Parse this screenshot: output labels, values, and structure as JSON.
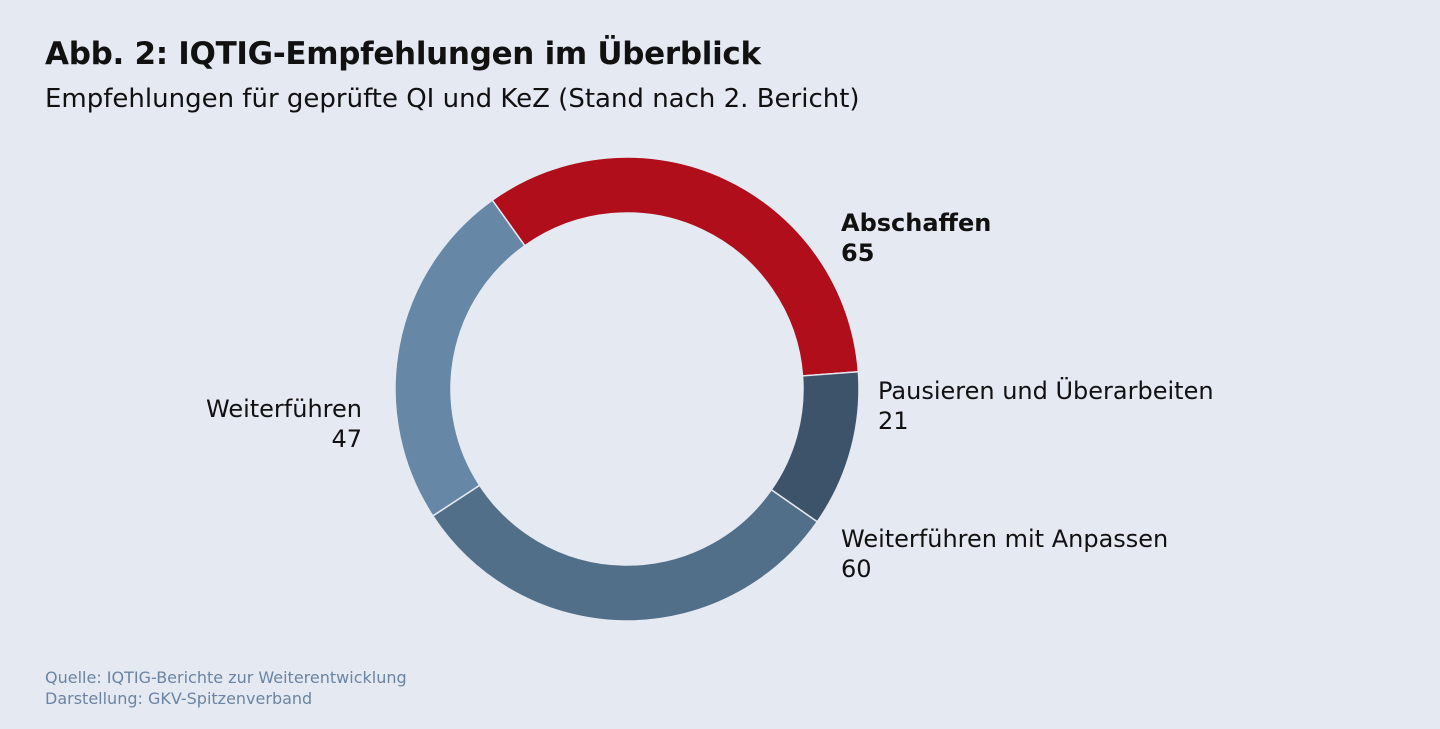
{
  "chart_data": {
    "type": "pie",
    "title": "Abb. 2: IQTIG-Empfehlungen im Überblick",
    "subtitle": "Empfehlungen für geprüfte QI und KeZ (Stand nach 2. Bericht)",
    "donut": true,
    "slices": [
      {
        "label": "Abschaffen",
        "value": 65,
        "value_label": "65",
        "color": "#b00e1a",
        "emphasis": true
      },
      {
        "label": "Pausieren und Überarbeiten",
        "value": 21,
        "value_label": "21",
        "color": "#3d5369",
        "emphasis": false
      },
      {
        "label": "Weiterführen mit Anpassen",
        "value": 60,
        "value_label": "60",
        "color": "#526f89",
        "emphasis": false
      },
      {
        "label": "Weiterführen",
        "value": 47,
        "value_label": "47",
        "color": "#6687a6",
        "emphasis": false
      }
    ],
    "source": "Quelle: IQTIG-Berichte zur Weiterentwicklung",
    "credit": "Darstellung: GKV-Spitzenverband"
  }
}
